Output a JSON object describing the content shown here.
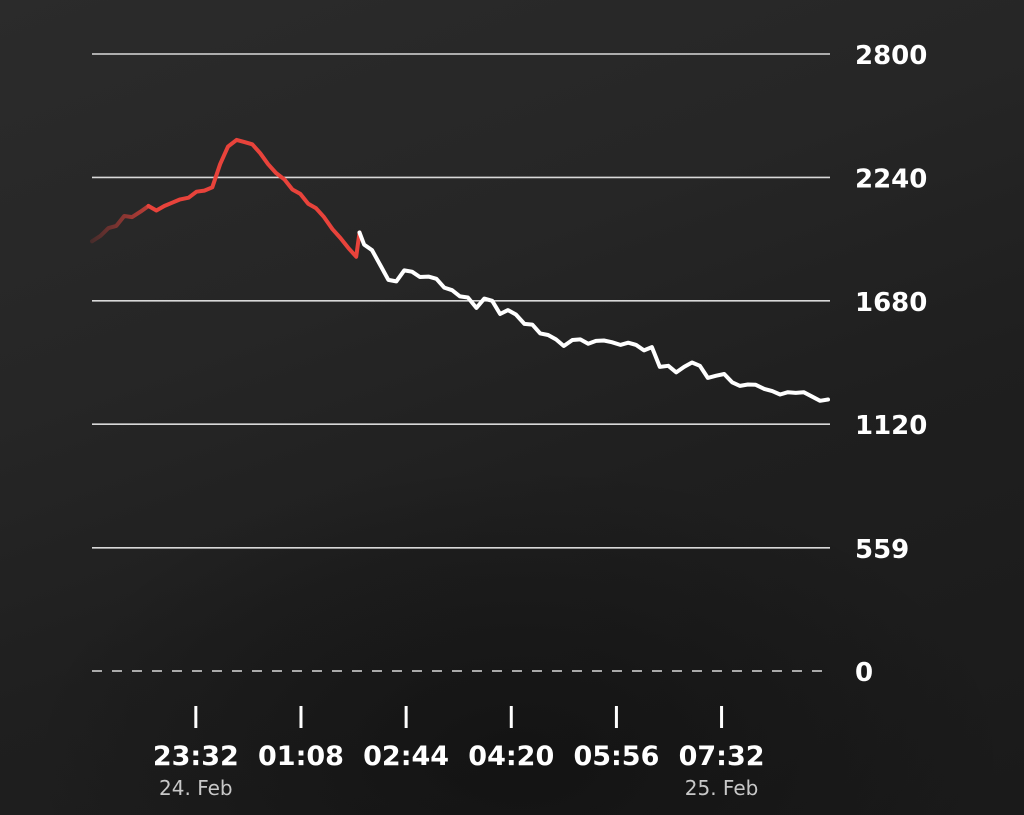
{
  "colors": {
    "grid": "#d9d9d9",
    "line_normal": "#ffffff",
    "line_highlight": "#e8433b",
    "text": "#ffffff",
    "date_text": "#c8c8c8"
  },
  "chart_data": {
    "type": "line",
    "title": "",
    "xlabel": "",
    "ylabel": "",
    "ylim": [
      0,
      2800
    ],
    "y_ticks": [
      "2800",
      "2240",
      "1680",
      "1120",
      "559",
      "0"
    ],
    "y_tick_values": [
      2800,
      2240,
      1680,
      1120,
      559,
      0
    ],
    "x_ticks": [
      {
        "time": "23:32",
        "date": "24. Feb"
      },
      {
        "time": "01:08",
        "date": ""
      },
      {
        "time": "02:44",
        "date": ""
      },
      {
        "time": "04:20",
        "date": ""
      },
      {
        "time": "05:56",
        "date": ""
      },
      {
        "time": "07:32",
        "date": "25. Feb"
      }
    ],
    "x_tick_hours": [
      0,
      1.6,
      3.2,
      4.8,
      6.4,
      8.0
    ],
    "xlim_hours": [
      -1.58,
      9.65
    ],
    "grid": true,
    "highlight_range_hours": [
      -1.58,
      2.49
    ],
    "series": [
      {
        "x_hours": [
          -1.58,
          -1.45,
          -1.33,
          -1.21,
          -1.09,
          -0.97,
          -0.84,
          -0.72,
          -0.6,
          -0.48,
          -0.36,
          -0.24,
          -0.11,
          0.01,
          0.13,
          0.25,
          0.37,
          0.49,
          0.62,
          0.74,
          0.86,
          0.98,
          1.1,
          1.22,
          1.35,
          1.47,
          1.59,
          1.71,
          1.83,
          1.95,
          2.08,
          2.2,
          2.32,
          2.44,
          2.49,
          2.56,
          2.68,
          2.81,
          2.93,
          3.05,
          3.17,
          3.29,
          3.41,
          3.54,
          3.66,
          3.78,
          3.9,
          4.02,
          4.14,
          4.27,
          4.39,
          4.51,
          4.63,
          4.75,
          4.87,
          5.0,
          5.12,
          5.24,
          5.36,
          5.48,
          5.6,
          5.73,
          5.85,
          5.97,
          6.09,
          6.21,
          6.33,
          6.46,
          6.58,
          6.7,
          6.82,
          6.94,
          7.06,
          7.19,
          7.31,
          7.43,
          7.55,
          7.67,
          7.79,
          7.92,
          8.04,
          8.16,
          8.28,
          8.4,
          8.52,
          8.65,
          8.77,
          8.89,
          9.01,
          9.13,
          9.25,
          9.38,
          9.5,
          9.62
        ],
        "values": [
          1950,
          1975,
          2010,
          2020,
          2065,
          2060,
          2085,
          2110,
          2090,
          2110,
          2125,
          2140,
          2148,
          2175,
          2180,
          2195,
          2300,
          2380,
          2410,
          2400,
          2390,
          2350,
          2300,
          2260,
          2230,
          2185,
          2165,
          2120,
          2100,
          2060,
          2005,
          1965,
          1920,
          1880,
          1990,
          1935,
          1910,
          1840,
          1775,
          1768,
          1818,
          1812,
          1788,
          1790,
          1780,
          1740,
          1728,
          1700,
          1695,
          1648,
          1690,
          1680,
          1620,
          1638,
          1618,
          1575,
          1572,
          1532,
          1525,
          1505,
          1475,
          1502,
          1505,
          1485,
          1498,
          1500,
          1492,
          1480,
          1490,
          1480,
          1455,
          1470,
          1380,
          1385,
          1355,
          1380,
          1400,
          1385,
          1330,
          1340,
          1348,
          1310,
          1294,
          1300,
          1299,
          1280,
          1270,
          1255,
          1265,
          1262,
          1265,
          1245,
          1226,
          1232
        ]
      }
    ]
  }
}
